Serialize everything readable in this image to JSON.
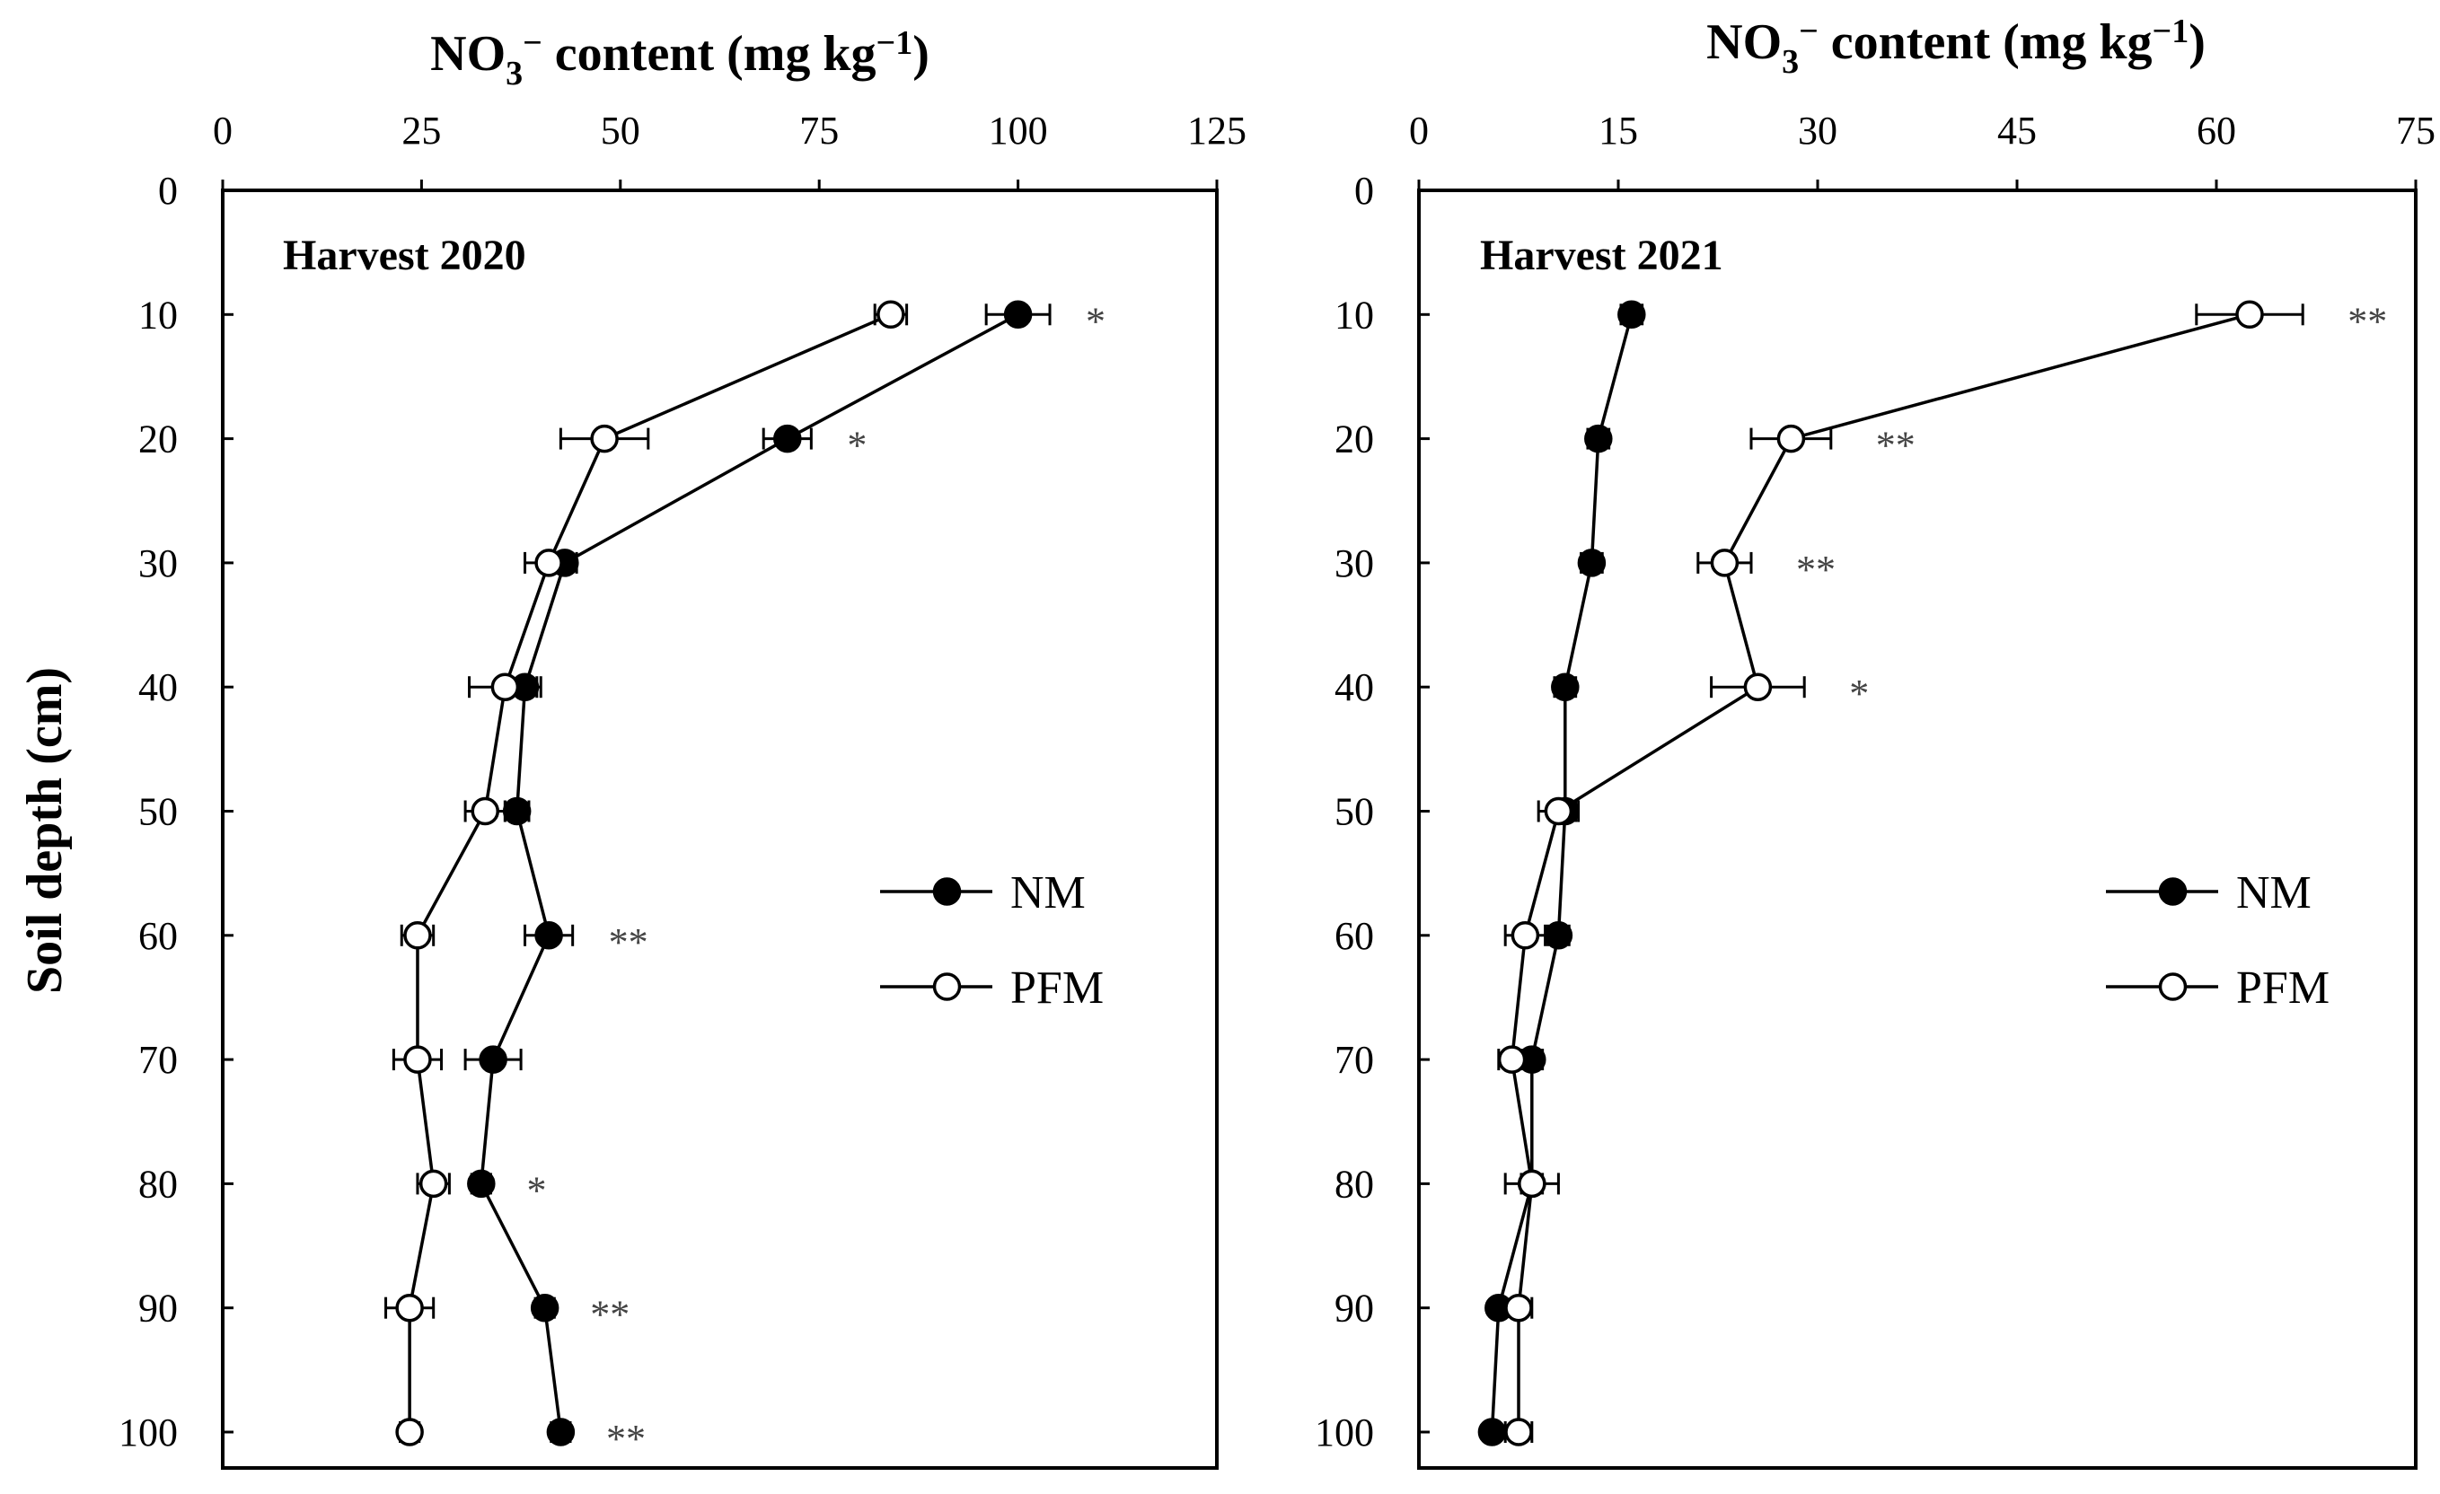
{
  "figure": {
    "y_axis_label": "Soil depth (cm)"
  },
  "chart_data": [
    {
      "type": "line",
      "panel_label": "Harvest 2020",
      "x_title": {
        "main": "NO",
        "sub": "3",
        "sup1": "−",
        "mid": " content (mg kg",
        "sup2": "−1",
        "end": ")"
      },
      "xlim": [
        0,
        125
      ],
      "x_ticks": [
        0,
        25,
        50,
        75,
        100,
        125
      ],
      "ylim": [
        0,
        100
      ],
      "y_ticks": [
        0,
        10,
        20,
        30,
        40,
        50,
        60,
        70,
        80,
        90,
        100
      ],
      "y_label": "Soil depth (cm)",
      "grid": false,
      "legend_position": "right-middle",
      "depths": [
        10,
        20,
        30,
        40,
        50,
        60,
        70,
        80,
        90,
        100
      ],
      "series": [
        {
          "name": "NM",
          "marker": "filled-circle",
          "values": [
            100,
            71,
            43,
            38,
            37,
            41,
            34,
            32.5,
            40.5,
            42.5
          ],
          "errors": [
            4,
            3,
            1.5,
            1.5,
            1.5,
            3,
            3.5,
            1.2,
            1.2,
            1.2
          ]
        },
        {
          "name": "PFM",
          "marker": "open-circle",
          "values": [
            84,
            48,
            41,
            35.5,
            33,
            24.5,
            24.5,
            26.5,
            23.5,
            23.5
          ],
          "errors": [
            2,
            5.5,
            3,
            4.5,
            2.5,
            2,
            3,
            2,
            3,
            1.2
          ]
        }
      ],
      "significance": [
        {
          "depth": 10,
          "label": "*"
        },
        {
          "depth": 20,
          "label": "*"
        },
        {
          "depth": 60,
          "label": "**"
        },
        {
          "depth": 80,
          "label": "*"
        },
        {
          "depth": 90,
          "label": "**"
        },
        {
          "depth": 100,
          "label": "**"
        }
      ]
    },
    {
      "type": "line",
      "panel_label": "Harvest 2021",
      "x_title": {
        "main": "NO",
        "sub": "3",
        "sup1": "−",
        "mid": " content (mg kg",
        "sup2": "−1",
        "end": ")"
      },
      "xlim": [
        0,
        75
      ],
      "x_ticks": [
        0,
        15,
        30,
        45,
        60,
        75
      ],
      "ylim": [
        0,
        100
      ],
      "y_ticks": [
        0,
        10,
        20,
        30,
        40,
        50,
        60,
        70,
        80,
        90,
        100
      ],
      "y_label": "",
      "grid": false,
      "legend_position": "right-middle",
      "depths": [
        10,
        20,
        30,
        40,
        50,
        60,
        70,
        80,
        90,
        100
      ],
      "series": [
        {
          "name": "NM",
          "marker": "filled-circle",
          "values": [
            16,
            13.5,
            13,
            11,
            11,
            10.5,
            8.5,
            8.5,
            6,
            5.5
          ],
          "errors": [
            0.8,
            0.8,
            0.8,
            0.8,
            0.8,
            0.8,
            0.8,
            0.8,
            0.5,
            0.5
          ]
        },
        {
          "name": "PFM",
          "marker": "open-circle",
          "values": [
            62.5,
            28,
            23,
            25.5,
            10.5,
            8,
            7,
            8.5,
            7.5,
            7.5
          ],
          "errors": [
            4,
            3,
            2,
            3.5,
            1.5,
            1.5,
            1,
            2,
            1,
            1
          ]
        }
      ],
      "significance": [
        {
          "depth": 10,
          "label": "**"
        },
        {
          "depth": 20,
          "label": "**"
        },
        {
          "depth": 30,
          "label": "**"
        },
        {
          "depth": 40,
          "label": "*"
        }
      ]
    }
  ]
}
